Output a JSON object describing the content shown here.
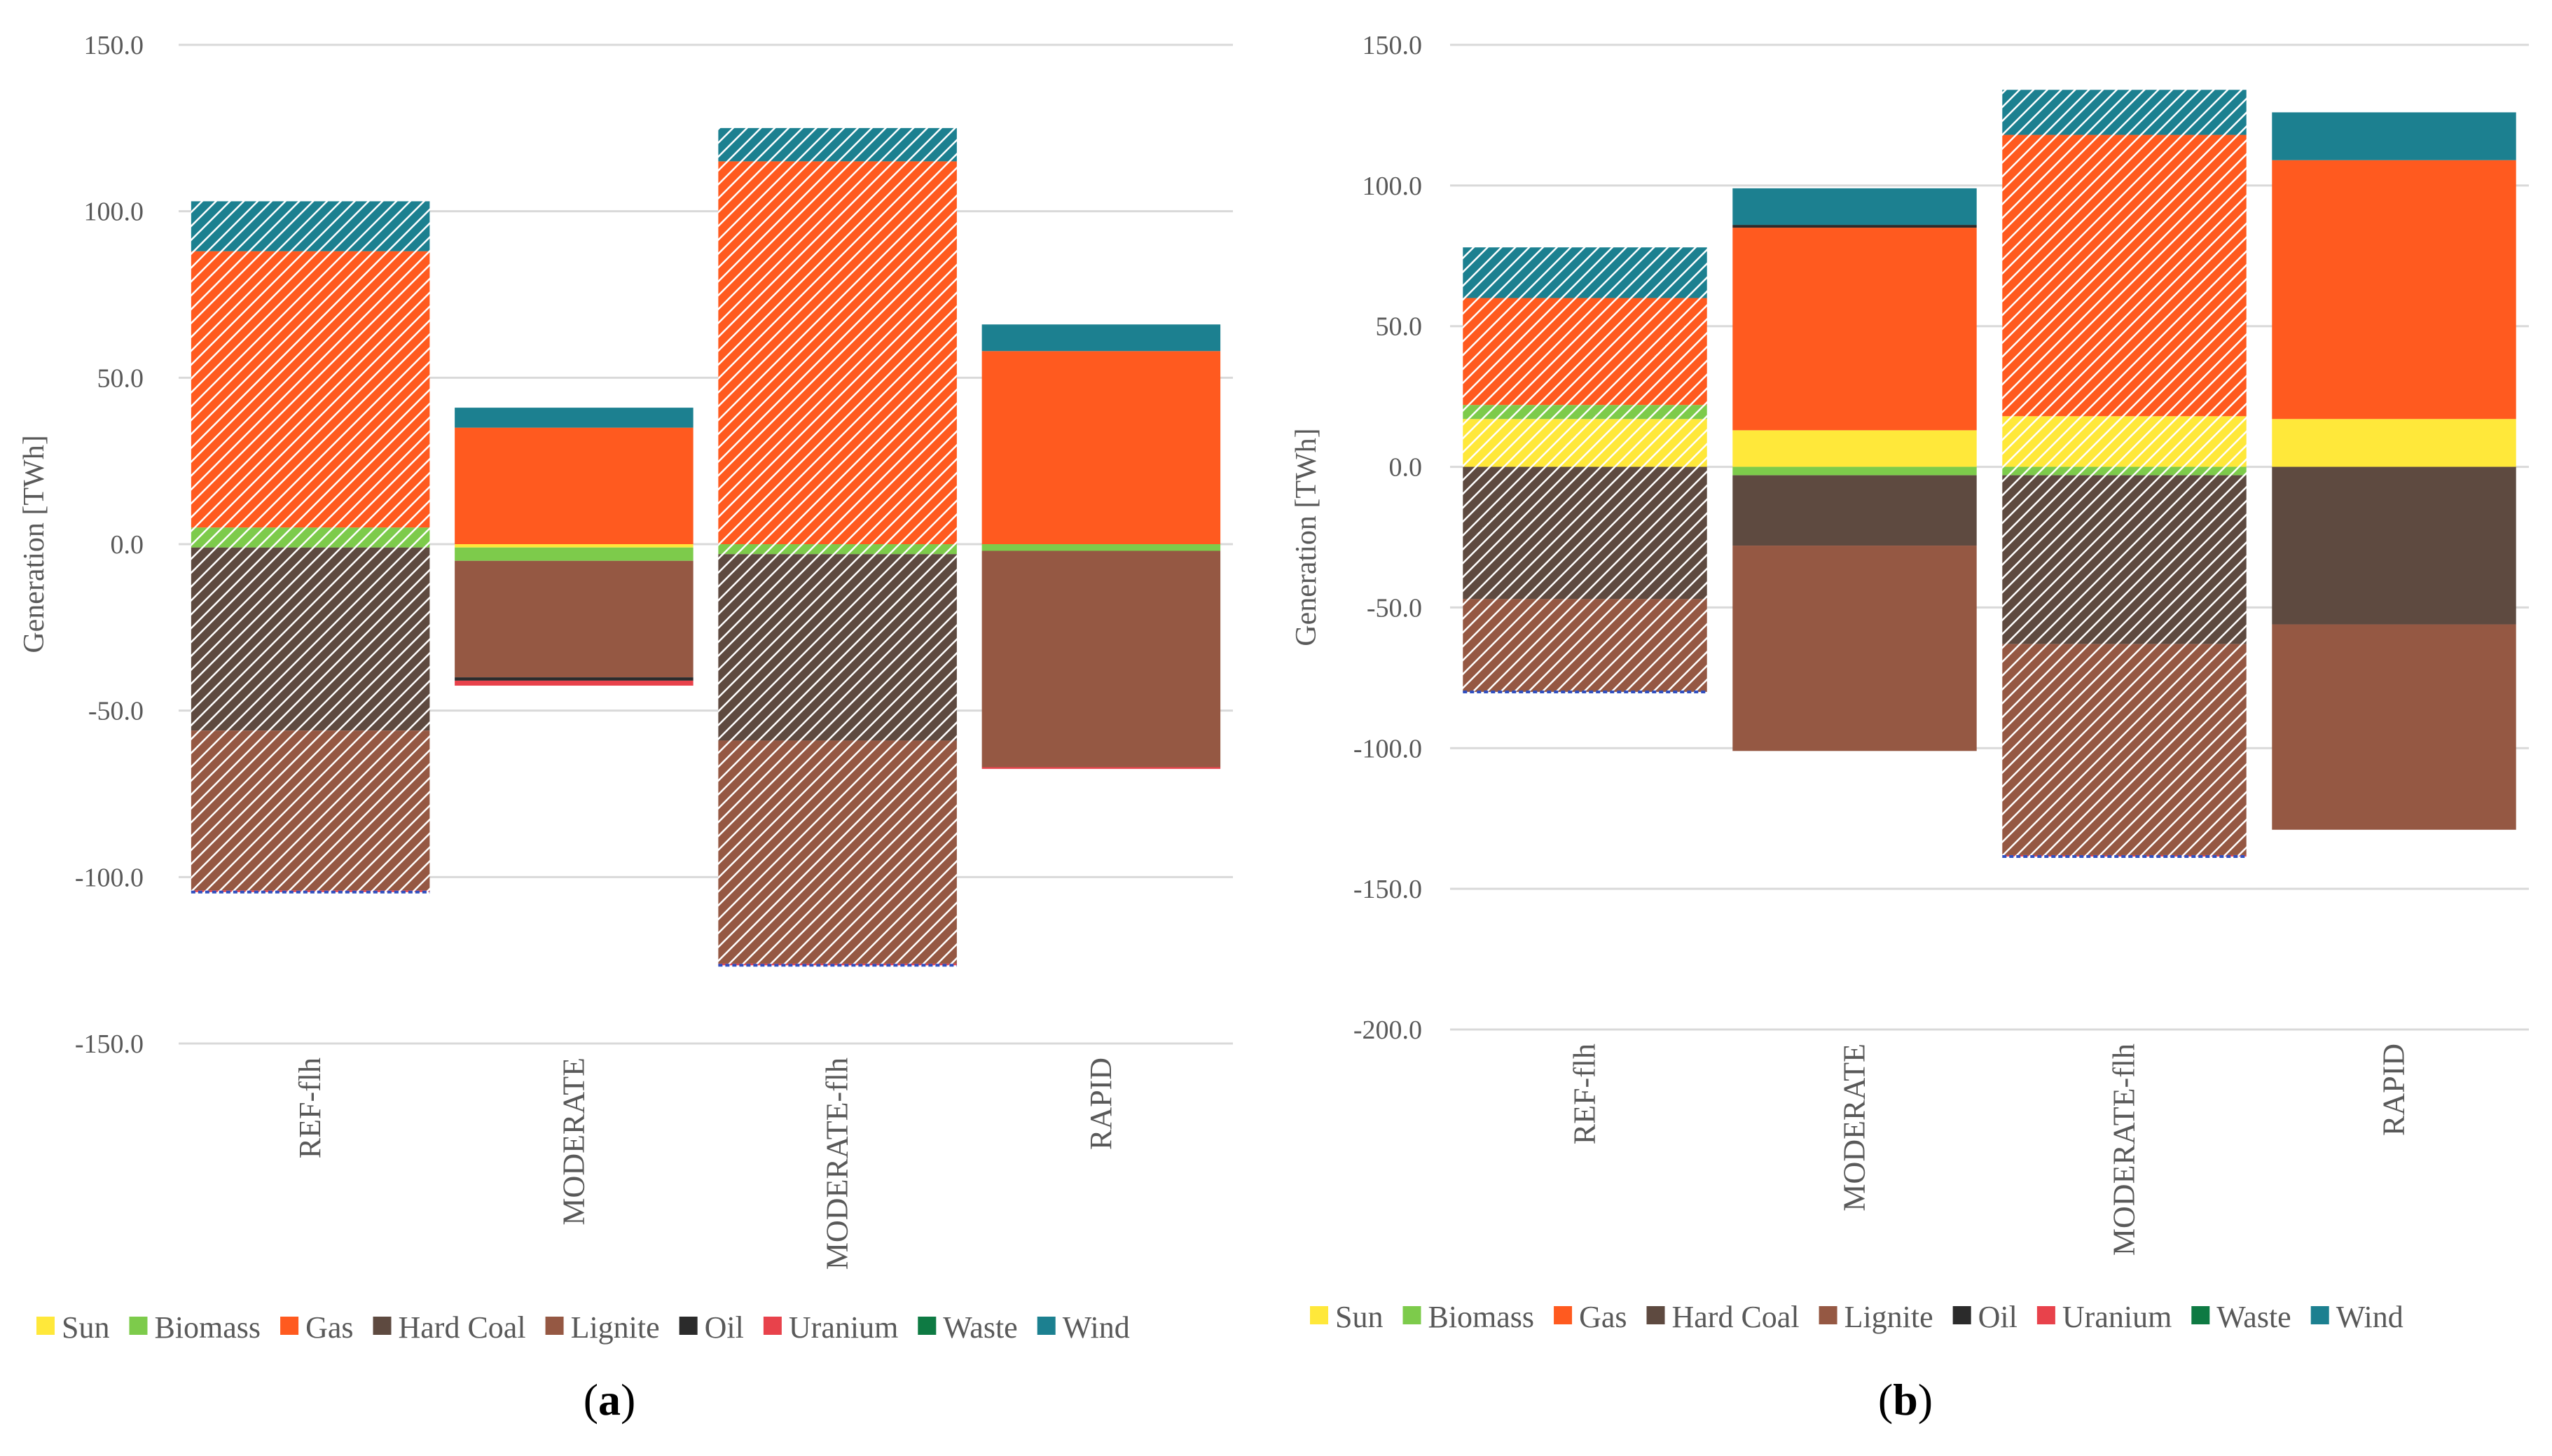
{
  "colors": {
    "Sun": "#FFE83A",
    "Biomass": "#7DCB4B",
    "Gas": "#FF5A1F",
    "Hard Coal": "#5E4A40",
    "Lignite": "#955843",
    "Oil": "#2B2B2B",
    "Uranium": "#E8424B",
    "Waste": "#0E7A43",
    "Wind": "#1C8090",
    "grid": "#D9D9D9",
    "hatch": "#FFFFFF",
    "flhEdge": "#3050C0"
  },
  "legend": [
    "Sun",
    "Biomass",
    "Gas",
    "Hard Coal",
    "Lignite",
    "Oil",
    "Uranium",
    "Waste",
    "Wind"
  ],
  "chart_data": [
    {
      "type": "bar",
      "stacked": true,
      "panel_label": "a",
      "ylabel": "Generation [TWh]",
      "ylim": [
        -150,
        150
      ],
      "yticks": [
        150.0,
        100.0,
        50.0,
        0.0,
        -50.0,
        -100.0,
        -150.0
      ],
      "ytick_labels": [
        "150.0",
        "100.0",
        "50.0",
        "0.0",
        "-50.0",
        "-100.0",
        "-150.0"
      ],
      "categories": [
        "REF-flh",
        "MODERATE",
        "MODERATE-flh",
        "RAPID"
      ],
      "hatched": [
        true,
        false,
        true,
        false
      ],
      "positive_series": [
        {
          "name": "Sun",
          "values": [
            0,
            0,
            0,
            0
          ]
        },
        {
          "name": "Biomass",
          "values": [
            5,
            0,
            0,
            0
          ]
        },
        {
          "name": "Gas",
          "values": [
            83,
            35,
            115,
            58
          ]
        },
        {
          "name": "Wind",
          "values": [
            15,
            6,
            10,
            8
          ]
        }
      ],
      "negative_series": [
        {
          "name": "Sun",
          "values": [
            0,
            -1,
            0,
            0
          ]
        },
        {
          "name": "Biomass",
          "values": [
            -1,
            -4,
            -3,
            -2
          ]
        },
        {
          "name": "Hard Coal",
          "values": [
            -55,
            0,
            -56,
            0
          ]
        },
        {
          "name": "Lignite",
          "values": [
            -48,
            -35,
            -67,
            -65
          ]
        },
        {
          "name": "Oil",
          "values": [
            0,
            -1,
            0,
            0
          ]
        },
        {
          "name": "Uranium",
          "values": [
            -0.5,
            -1.5,
            -0.5,
            -0.5
          ]
        }
      ]
    },
    {
      "type": "bar",
      "stacked": true,
      "panel_label": "b",
      "ylabel": "Generation [TWh]",
      "ylim": [
        -200,
        150
      ],
      "yticks": [
        150.0,
        100.0,
        50.0,
        0.0,
        -50.0,
        -100.0,
        -150.0,
        -200.0
      ],
      "ytick_labels": [
        "150.0",
        "100.0",
        "50.0",
        "0.0",
        "-50.0",
        "-100.0",
        "-150.0",
        "-200.0"
      ],
      "categories": [
        "REF-flh",
        "MODERATE",
        "MODERATE-flh",
        "RAPID"
      ],
      "hatched": [
        true,
        false,
        true,
        false
      ],
      "positive_series": [
        {
          "name": "Sun",
          "values": [
            17,
            13,
            18,
            17
          ]
        },
        {
          "name": "Biomass",
          "values": [
            5,
            0,
            0,
            0
          ]
        },
        {
          "name": "Gas",
          "values": [
            38,
            72,
            100,
            92
          ]
        },
        {
          "name": "Oil",
          "values": [
            0,
            1,
            0,
            0
          ]
        },
        {
          "name": "Wind",
          "values": [
            18,
            13,
            16,
            17
          ]
        }
      ],
      "negative_series": [
        {
          "name": "Biomass",
          "values": [
            0,
            -3,
            -3,
            0
          ]
        },
        {
          "name": "Hard Coal",
          "values": [
            -47,
            -25,
            -60,
            -56
          ]
        },
        {
          "name": "Lignite",
          "values": [
            -33,
            -73,
            -75,
            -73
          ]
        },
        {
          "name": "Uranium",
          "values": [
            0,
            0,
            -0.5,
            0
          ]
        }
      ]
    }
  ]
}
